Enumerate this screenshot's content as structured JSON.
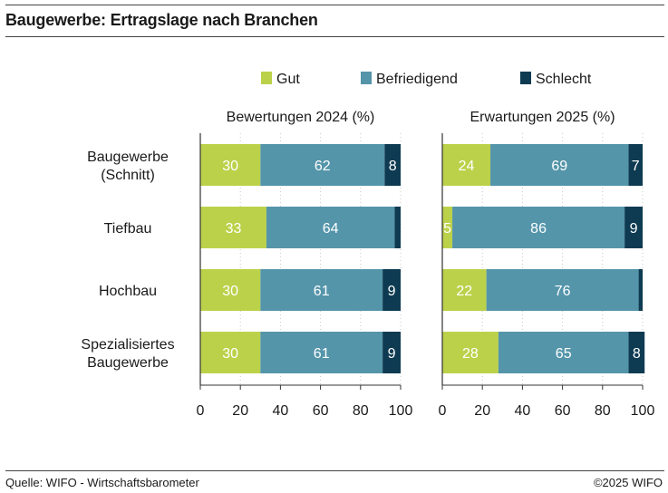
{
  "title": "Baugewerbe: Ertragslage nach Branchen",
  "source": "Quelle: WIFO - Wirtschaftsbarometer",
  "copyright": "©2025 WIFO",
  "colors": {
    "Gut": "#bcd14a",
    "Befriedigend": "#5495aa",
    "Schlecht": "#0e3b52"
  },
  "chart_data": {
    "type": "bar",
    "orientation": "horizontal",
    "stacked": true,
    "legend": {
      "position": "top",
      "entries": [
        "Gut",
        "Befriedigend",
        "Schlecht"
      ]
    },
    "categories": [
      [
        "Baugewerbe",
        "(Schnitt)"
      ],
      [
        "Tiefbau"
      ],
      [
        "Hochbau"
      ],
      [
        "Spezialisiertes",
        "Baugewerbe"
      ]
    ],
    "xlim": [
      0,
      100
    ],
    "xticks": [
      0,
      20,
      40,
      60,
      80,
      100
    ],
    "panels": [
      {
        "title": "Bewertungen 2024 (%)",
        "series": [
          {
            "name": "Gut",
            "values": [
              30,
              33,
              30,
              30
            ],
            "labels": [
              "30",
              "33",
              "30",
              "30"
            ]
          },
          {
            "name": "Befriedigend",
            "values": [
              62,
              64,
              61,
              61
            ],
            "labels": [
              "62",
              "64",
              "61",
              "61"
            ]
          },
          {
            "name": "Schlecht",
            "values": [
              8,
              3,
              9,
              9
            ],
            "labels": [
              "8",
              "",
              "9",
              "9"
            ]
          }
        ]
      },
      {
        "title": "Erwartungen 2025 (%)",
        "series": [
          {
            "name": "Gut",
            "values": [
              24,
              5,
              22,
              28
            ],
            "labels": [
              "24",
              "5",
              "22",
              "28"
            ]
          },
          {
            "name": "Befriedigend",
            "values": [
              69,
              86,
              76,
              65
            ],
            "labels": [
              "69",
              "86",
              "76",
              "65"
            ]
          },
          {
            "name": "Schlecht",
            "values": [
              7,
              9,
              2,
              8
            ],
            "labels": [
              "7",
              "9",
              "",
              "8"
            ]
          }
        ]
      }
    ]
  }
}
